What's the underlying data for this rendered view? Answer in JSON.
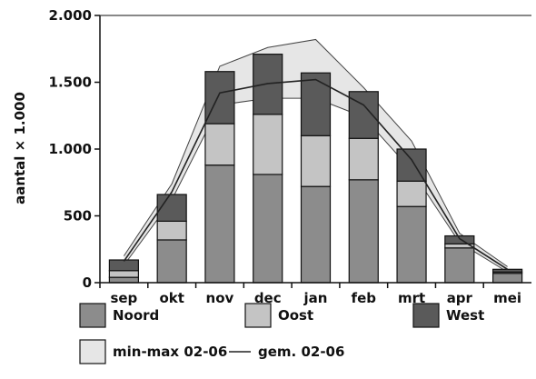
{
  "chart_data": {
    "type": "bar",
    "stacked": true,
    "title": "",
    "xlabel": "",
    "ylabel": "aantal × 1.000",
    "ylim": [
      0,
      2000
    ],
    "yticks": [
      {
        "value": 0,
        "label": "0"
      },
      {
        "value": 500,
        "label": "500"
      },
      {
        "value": 1000,
        "label": "1.000"
      },
      {
        "value": 1500,
        "label": "1.500"
      },
      {
        "value": 2000,
        "label": "2.000"
      }
    ],
    "categories": [
      "sep",
      "okt",
      "nov",
      "dec",
      "jan",
      "feb",
      "mrt",
      "apr",
      "mei"
    ],
    "series": [
      {
        "name": "Noord",
        "color": "#8c8c8c",
        "values": [
          40,
          320,
          880,
          810,
          720,
          770,
          570,
          260,
          70
        ]
      },
      {
        "name": "Oost",
        "color": "#c4c4c4",
        "values": [
          50,
          140,
          310,
          450,
          380,
          310,
          190,
          30,
          10
        ]
      },
      {
        "name": "West",
        "color": "#5a5a5a",
        "values": [
          80,
          200,
          390,
          450,
          470,
          350,
          240,
          60,
          20
        ]
      }
    ],
    "range_band": {
      "name": "min-max 02-06",
      "color": "#e6e6e6",
      "min": [
        130,
        620,
        1330,
        1380,
        1380,
        1240,
        840,
        300,
        80
      ],
      "max": [
        200,
        740,
        1620,
        1760,
        1820,
        1460,
        1060,
        370,
        120
      ]
    },
    "mean_line": {
      "name": "gem. 02-06",
      "color": "#222222",
      "values": [
        160,
        680,
        1420,
        1490,
        1520,
        1330,
        920,
        330,
        100
      ]
    },
    "legend": {
      "placement": "bottom",
      "entries": [
        {
          "label": "Noord",
          "color": "#8c8c8c",
          "kind": "box"
        },
        {
          "label": "Oost",
          "color": "#c4c4c4",
          "kind": "box"
        },
        {
          "label": "West",
          "color": "#5a5a5a",
          "kind": "box"
        },
        {
          "label": "min-max 02-06",
          "color": "#e6e6e6",
          "kind": "box"
        },
        {
          "label": "gem. 02-06",
          "color": "#222222",
          "kind": "line"
        }
      ]
    },
    "grid": false
  }
}
